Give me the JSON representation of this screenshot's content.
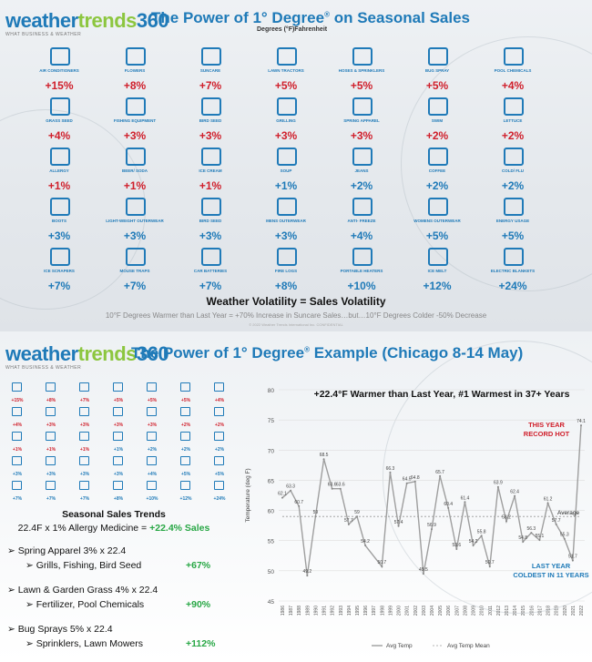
{
  "brand": {
    "logo_a": "weather",
    "logo_b": "trends",
    "logo_c": "360",
    "tagline": "WHAT BUSINESS & WEATHER"
  },
  "panel1": {
    "title": "The Power of 1° Degree",
    "title_mark": "®",
    "title_suffix": " on Seasonal Sales",
    "subtitle": "Degrees (°F)Fahrenheit",
    "grid": [
      {
        "label": "AIR CONDITIONERS",
        "pct": "+15%",
        "color": "red"
      },
      {
        "label": "FLOWERS",
        "pct": "+8%",
        "color": "red"
      },
      {
        "label": "SUNCARE",
        "pct": "+7%",
        "color": "red"
      },
      {
        "label": "LAWN TRACTORS",
        "pct": "+5%",
        "color": "red"
      },
      {
        "label": "HOSES & SPRINKLERS",
        "pct": "+5%",
        "color": "red"
      },
      {
        "label": "BUG SPRAY",
        "pct": "+5%",
        "color": "red"
      },
      {
        "label": "POOL CHEMICALS",
        "pct": "+4%",
        "color": "red"
      },
      {
        "label": "GRASS SEED",
        "pct": "+4%",
        "color": "red"
      },
      {
        "label": "FISHING EQUIPMENT",
        "pct": "+3%",
        "color": "red"
      },
      {
        "label": "BIRD SEED",
        "pct": "+3%",
        "color": "red"
      },
      {
        "label": "GRILLING",
        "pct": "+3%",
        "color": "red"
      },
      {
        "label": "SPRING APPAREL",
        "pct": "+3%",
        "color": "red"
      },
      {
        "label": "SWIM",
        "pct": "+2%",
        "color": "red"
      },
      {
        "label": "LETTUCE",
        "pct": "+2%",
        "color": "red"
      },
      {
        "label": "ALLERGY",
        "pct": "+1%",
        "color": "red"
      },
      {
        "label": "BEER/ SODA",
        "pct": "+1%",
        "color": "red"
      },
      {
        "label": "ICE CREAM",
        "pct": "+1%",
        "color": "red"
      },
      {
        "label": "SOUP",
        "pct": "+1%",
        "color": "blue"
      },
      {
        "label": "JEANS",
        "pct": "+2%",
        "color": "blue"
      },
      {
        "label": "COFFEE",
        "pct": "+2%",
        "color": "blue"
      },
      {
        "label": "COLD/ FLU",
        "pct": "+2%",
        "color": "blue"
      },
      {
        "label": "BOOTS",
        "pct": "+3%",
        "color": "blue"
      },
      {
        "label": "LIGHT-WEIGHT OUTERWEAR",
        "pct": "+3%",
        "color": "blue"
      },
      {
        "label": "BIRD SEED",
        "pct": "+3%",
        "color": "blue"
      },
      {
        "label": "MENS OUTERWEAR",
        "pct": "+3%",
        "color": "blue"
      },
      {
        "label": "ANTI- FREEZE",
        "pct": "+4%",
        "color": "blue"
      },
      {
        "label": "WOMENS OUTERWEAR",
        "pct": "+5%",
        "color": "blue"
      },
      {
        "label": "ENERGY USAGE",
        "pct": "+5%",
        "color": "blue"
      },
      {
        "label": "ICE SCRAPERS",
        "pct": "+7%",
        "color": "blue"
      },
      {
        "label": "MOUSE TRAPS",
        "pct": "+7%",
        "color": "blue"
      },
      {
        "label": "CAR BATTERIES",
        "pct": "+7%",
        "color": "blue"
      },
      {
        "label": "FIRE LOGS",
        "pct": "+8%",
        "color": "blue"
      },
      {
        "label": "PORTABLE HEATERS",
        "pct": "+10%",
        "color": "blue"
      },
      {
        "label": "ICE MELT",
        "pct": "+12%",
        "color": "blue"
      },
      {
        "label": "ELECTRIC BLANKETS",
        "pct": "+24%",
        "color": "blue"
      }
    ],
    "volatility": "Weather Volatility =  Sales Volatility",
    "volatility_note": "10°F Degrees Warmer than Last Year = +70% Increase in Suncare Sales…but…10°F Degrees Colder -50% Decrease",
    "copyright": "© 2022 Weather Trends International Inc. CONFIDENTIAL"
  },
  "panel2": {
    "title": "The Power of 1° Degree",
    "title_mark": "®",
    "title_suffix": " Example (Chicago 8-14 May)",
    "trends_heading": "Seasonal Sales Trends",
    "allergy_line": "22.4F x 1% Allergy Medicine = ",
    "allergy_value": "+22.4% Sales",
    "groups": [
      {
        "head": "Spring Apparel 3% x 22.4",
        "sub": "Grills, Fishing, Bird Seed",
        "value": "+67%"
      },
      {
        "head": "Lawn & Garden Grass 4% x 22.4",
        "sub": "Fertilizer, Pool Chemicals",
        "value": "+90%"
      },
      {
        "head": "Bug Sprays 5% x 22.4",
        "sub": "Sprinklers, Lawn Mowers",
        "value": "+112%"
      }
    ]
  },
  "chart_data": {
    "type": "line",
    "title": "+22.4°F Warmer than Last Year, #1 Warmest in 37+ Years",
    "ylabel": "Temperature (deg F)",
    "ylim": [
      45,
      80
    ],
    "yticks": [
      45,
      50,
      55,
      60,
      65,
      70,
      75,
      80
    ],
    "x": [
      "1986",
      "1987",
      "1988",
      "1989",
      "1990",
      "1991",
      "1992",
      "1993",
      "1994",
      "1995",
      "1996",
      "1997",
      "1998",
      "1999",
      "2000",
      "2001",
      "2002",
      "2003",
      "2004",
      "2005",
      "2006",
      "2007",
      "2008",
      "2009",
      "2010",
      "2011",
      "2012",
      "2013",
      "2014",
      "2015",
      "2016",
      "2017",
      "2018",
      "2019",
      "2020",
      "2021",
      "2022"
    ],
    "series": [
      {
        "name": "Avg Temp",
        "values": [
          62.1,
          63.3,
          60.7,
          49.2,
          59,
          68.5,
          63.6,
          63.6,
          57.7,
          59,
          54.2,
          null,
          50.7,
          66.3,
          57.4,
          64.5,
          64.8,
          49.5,
          56.9,
          65.7,
          60.4,
          53.6,
          61.4,
          54.2,
          55.8,
          50.7,
          63.9,
          58.2,
          62.4,
          54.8,
          56.3,
          55.1,
          61.2,
          57.7,
          55.3,
          51.7,
          74.1
        ],
        "color": "#9e9e9e"
      },
      {
        "name": "Avg Temp Mean",
        "values": [
          59,
          59,
          59,
          59,
          59,
          59,
          59,
          59,
          59,
          59,
          59,
          59,
          59,
          59,
          59,
          59,
          59,
          59,
          59,
          59,
          59,
          59,
          59,
          59,
          59,
          59,
          59,
          59,
          59,
          59,
          59,
          59,
          59,
          59,
          59,
          59,
          59
        ],
        "color": "#9e9e9e"
      }
    ],
    "annotations": {
      "this_year": "THIS YEAR",
      "record_hot": "RECORD HOT",
      "average": "Average",
      "last_year": "LAST YEAR",
      "coldest": "COLDEST IN 11 YEARS"
    },
    "legend_placement": "bottom"
  },
  "colors": {
    "brand_blue": "#1f7ab8",
    "brand_green": "#8cc63f",
    "warm": "#d01f2b",
    "cold": "#1f7ab8",
    "positive": "#28a745"
  }
}
